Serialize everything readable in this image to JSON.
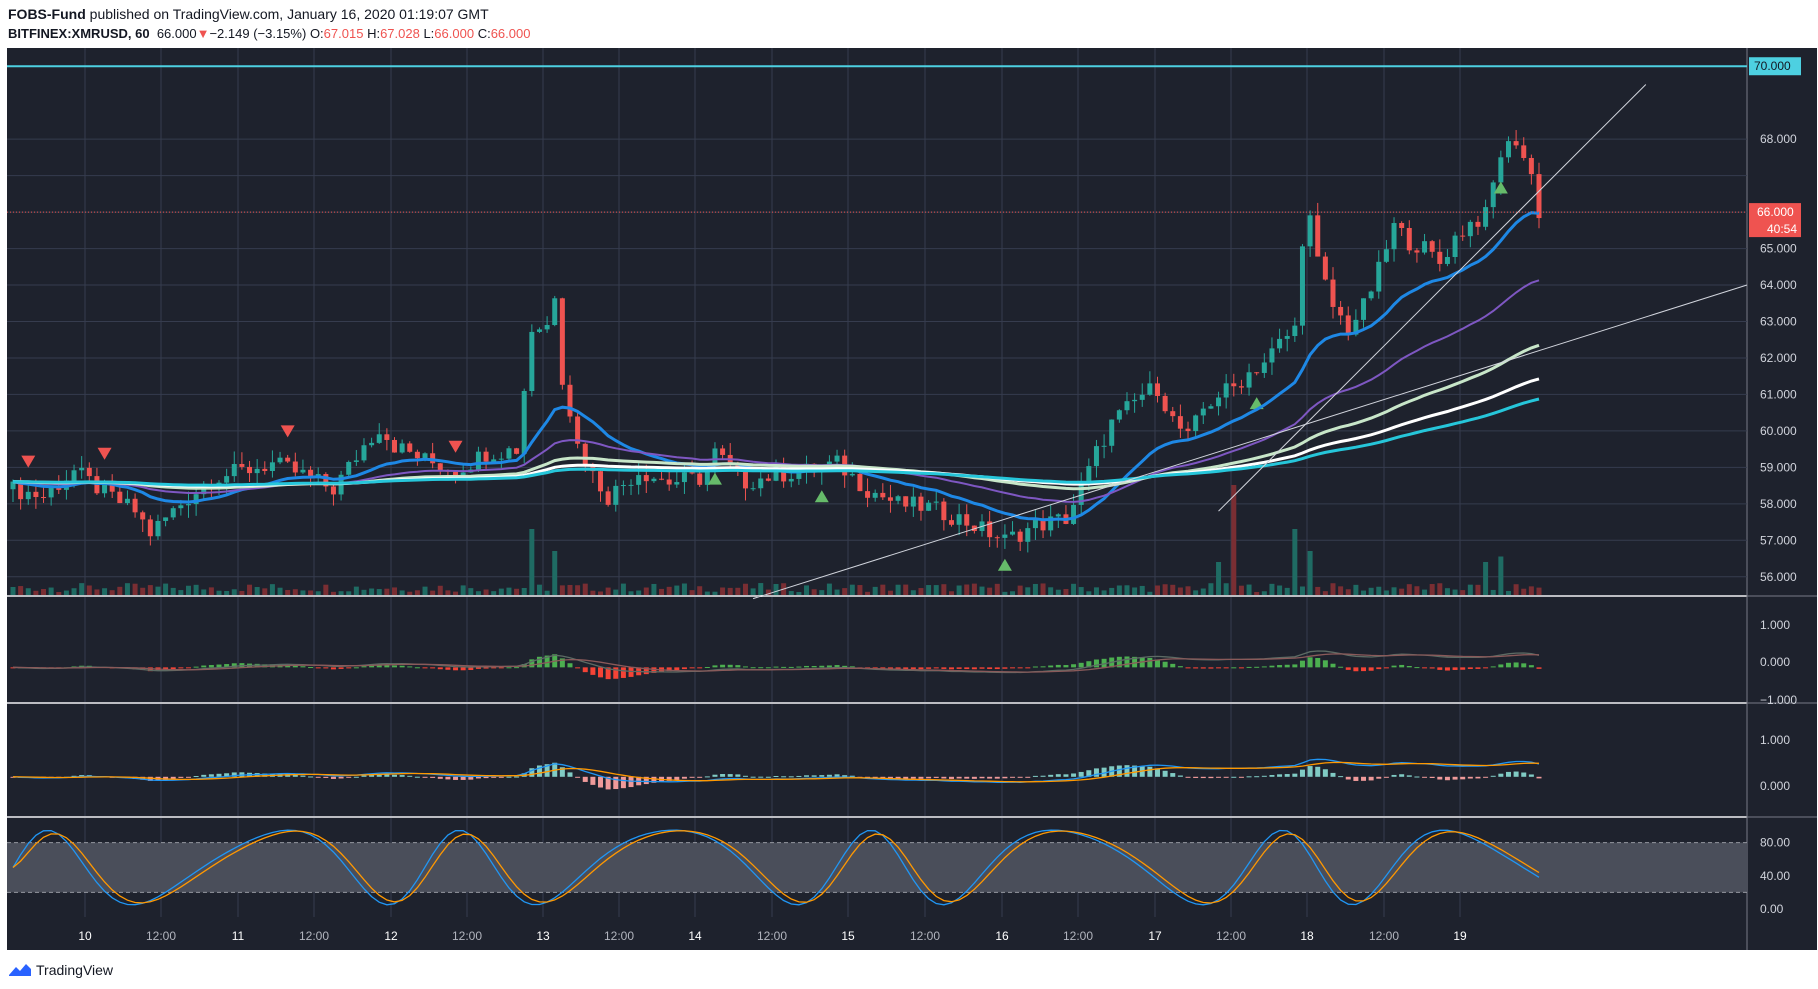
{
  "header": {
    "publisher": "FOBS-Fund",
    "published_text": " published on TradingView.com, January 16, 2020 01:19:07 GMT",
    "symbol": "BITFINEX:XMRUSD, 60",
    "last": "66.000",
    "change": "−2.149 (−3.15%)",
    "o_label": "O:",
    "o_val": "67.015",
    "h_label": "H:",
    "h_val": "67.028",
    "l_label": "L:",
    "l_val": "66.000",
    "c_label": "C:",
    "c_val": "66.000"
  },
  "price_axis": {
    "ticks": [
      "70.000",
      "68.000",
      "66.000",
      "65.000",
      "64.000",
      "63.000",
      "62.000",
      "61.000",
      "60.000",
      "59.000",
      "58.000",
      "57.000",
      "56.000"
    ],
    "level_label": "70.000",
    "last_label": "66.000",
    "countdown": "40:54"
  },
  "macd1_axis": {
    "ticks": [
      "1.000",
      "0.000",
      "−1.000"
    ]
  },
  "macd2_axis": {
    "ticks": [
      "1.000",
      "0.000"
    ]
  },
  "stoch_axis": {
    "ticks": [
      "80.00",
      "40.00",
      "0.00"
    ]
  },
  "time_axis": {
    "ticks": [
      "10",
      "12:00",
      "11",
      "12:00",
      "12",
      "12:00",
      "13",
      "12:00",
      "14",
      "12:00",
      "15",
      "12:00",
      "16",
      "12:00",
      "17",
      "12:00",
      "18",
      "12:00",
      "19"
    ]
  },
  "colors": {
    "up": "#26a69a",
    "down": "#ef5350",
    "bg": "#1e222d",
    "grid": "#363c4e",
    "level": "#4dd0e1"
  },
  "footer": {
    "brand": "TradingView"
  },
  "chart_data": {
    "type": "candlestick",
    "symbol": "BITFINEX:XMRUSD",
    "interval": "60",
    "price_range": [
      55.5,
      70.5
    ],
    "horizontal_level": 70.0,
    "last_price": 66.0,
    "price_close_path": [
      [
        0,
        58.4
      ],
      [
        4,
        58.2
      ],
      [
        8,
        58.9
      ],
      [
        12,
        58.3
      ],
      [
        16,
        57.8
      ],
      [
        18,
        57.2
      ],
      [
        22,
        58.0
      ],
      [
        26,
        58.7
      ],
      [
        30,
        58.9
      ],
      [
        34,
        59.1
      ],
      [
        38,
        58.8
      ],
      [
        42,
        58.4
      ],
      [
        46,
        59.6
      ],
      [
        48,
        60.1
      ],
      [
        50,
        59.6
      ],
      [
        54,
        59.2
      ],
      [
        58,
        58.9
      ],
      [
        62,
        59.4
      ],
      [
        66,
        59.5
      ],
      [
        68,
        62.8
      ],
      [
        70,
        62.9
      ],
      [
        71,
        63.8
      ],
      [
        72,
        61.5
      ],
      [
        74,
        59.6
      ],
      [
        76,
        58.8
      ],
      [
        78,
        58.2
      ],
      [
        82,
        58.9
      ],
      [
        86,
        58.6
      ],
      [
        90,
        58.7
      ],
      [
        92,
        59.4
      ],
      [
        96,
        58.6
      ],
      [
        100,
        58.8
      ],
      [
        104,
        58.9
      ],
      [
        108,
        59.1
      ],
      [
        112,
        58.4
      ],
      [
        116,
        58.0
      ],
      [
        120,
        57.9
      ],
      [
        124,
        57.6
      ],
      [
        128,
        57.2
      ],
      [
        130,
        57.0
      ],
      [
        134,
        57.4
      ],
      [
        138,
        57.6
      ],
      [
        140,
        58.4
      ],
      [
        142,
        59.4
      ],
      [
        144,
        60.2
      ],
      [
        146,
        60.6
      ],
      [
        148,
        61.0
      ],
      [
        150,
        61.2
      ],
      [
        152,
        60.3
      ],
      [
        154,
        59.8
      ],
      [
        156,
        60.6
      ],
      [
        158,
        61.0
      ],
      [
        160,
        61.2
      ],
      [
        162,
        61.6
      ],
      [
        164,
        61.9
      ],
      [
        166,
        62.4
      ],
      [
        168,
        62.8
      ],
      [
        169,
        65.3
      ],
      [
        170,
        65.8
      ],
      [
        171,
        64.6
      ],
      [
        173,
        63.4
      ],
      [
        175,
        62.8
      ],
      [
        177,
        63.4
      ],
      [
        179,
        64.4
      ],
      [
        181,
        65.6
      ],
      [
        183,
        65.2
      ],
      [
        185,
        65.0
      ],
      [
        187,
        64.6
      ],
      [
        189,
        65.3
      ],
      [
        191,
        65.7
      ],
      [
        193,
        65.9
      ],
      [
        195,
        67.6
      ],
      [
        197,
        68.0
      ],
      [
        199,
        67.0
      ],
      [
        200,
        66.0
      ]
    ],
    "volume_spikes": [
      [
        68,
        0.6
      ],
      [
        71,
        0.4
      ],
      [
        100,
        0.1
      ],
      [
        158,
        0.3
      ],
      [
        160,
        1.0
      ],
      [
        168,
        0.6
      ],
      [
        170,
        0.4
      ],
      [
        193,
        0.3
      ],
      [
        195,
        0.35
      ]
    ],
    "trendlines": [
      {
        "from": [
          97,
          55.4
        ],
        "to": [
          300,
          64.0
        ]
      },
      {
        "from": [
          158,
          57.8
        ],
        "to": [
          214,
          69.5
        ]
      }
    ],
    "indicators": [
      "EMA 20",
      "EMA 50",
      "EMA 100",
      "EMA 200",
      "MACD",
      "MACD",
      "Stochastic RSI"
    ],
    "macd_range": [
      -1.0,
      1.0
    ],
    "stoch_range": [
      0,
      100
    ],
    "stoch_bands": [
      20,
      80
    ]
  }
}
